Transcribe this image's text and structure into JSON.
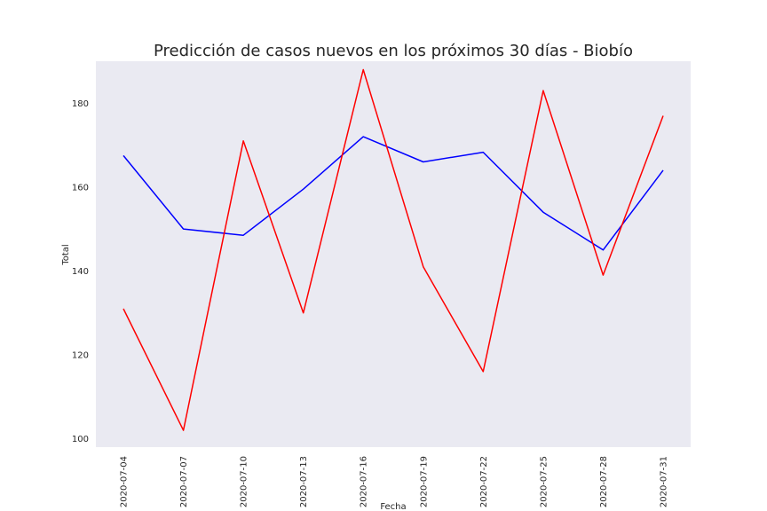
{
  "chart_data": {
    "type": "line",
    "title": "Predicción de casos nuevos en los próximos 30 días - Biobío",
    "xlabel": "Fecha",
    "ylabel": "Total",
    "x": [
      "2020-07-04",
      "2020-07-07",
      "2020-07-10",
      "2020-07-13",
      "2020-07-16",
      "2020-07-19",
      "2020-07-22",
      "2020-07-25",
      "2020-07-28",
      "2020-07-31"
    ],
    "yticks": [
      100,
      120,
      140,
      160,
      180
    ],
    "ylim": [
      98,
      190
    ],
    "grid": false,
    "background_color": "#eaeaf2",
    "series": [
      {
        "color": "#0000ff",
        "values": [
          167.5,
          150,
          148.5,
          159.5,
          172,
          166,
          168.3,
          154,
          145,
          164
        ]
      },
      {
        "color": "#ff0000",
        "values": [
          131,
          102,
          171,
          130,
          188,
          141,
          116,
          183,
          139,
          177
        ]
      }
    ]
  }
}
